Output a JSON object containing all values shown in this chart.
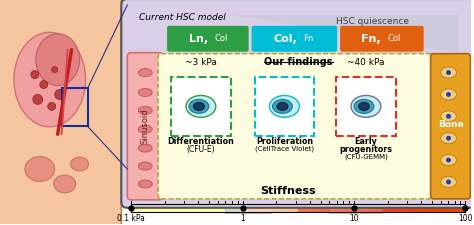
{
  "title": "Stiffness",
  "stiffness_labels": [
    "0.1 kPa",
    "1",
    "10",
    "100"
  ],
  "main_box_bg": "#d9d0e8",
  "current_hsc_label": "Current HSC model",
  "hsc_quiescence_label": "HSC quiescence",
  "ln_col_color": "#2e9e44",
  "col_fn_color": "#00bcd4",
  "fn_col_color": "#e06010",
  "our_findings_label": "Our findings",
  "findings_bg": "#fffde0",
  "sinusoid_label": "Sinusoid",
  "bone_label": "Bone",
  "kpa3_label": "~3 kPa",
  "kpa40_label": "~40 kPa",
  "diff_label1": "Differentiation",
  "diff_label2": "(CFU-E)",
  "prolif_label1": "Proliferation",
  "prolif_label2": "(CellTrace Violet)",
  "early_label1": "Early",
  "early_label2": "progenitors",
  "early_label3": "(CFU-GEMM)",
  "diff_box_color": "#2e9e44",
  "prolif_box_color": "#00bcd4",
  "early_box_color": "#e03020",
  "sinusoid_color": "#f5b0b0",
  "bone_color": "#e8a020"
}
